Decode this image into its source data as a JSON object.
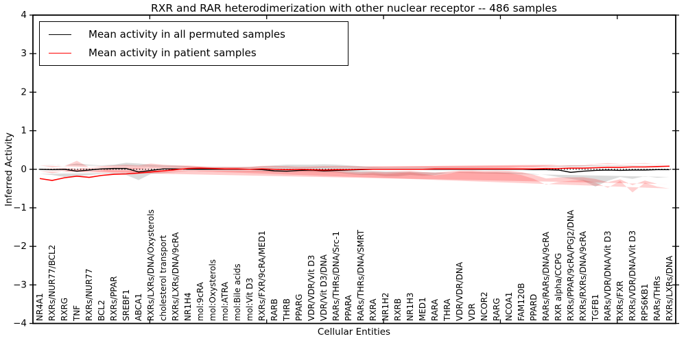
{
  "chart_data": {
    "type": "line",
    "title": "RXR and RAR heterodimerization with other nuclear receptor -- 486 samples",
    "xlabel": "Cellular Entities",
    "ylabel": "Inferred Activity",
    "ylim": [
      -4,
      4
    ],
    "yticks": [
      4,
      3,
      2,
      1,
      0,
      -1,
      -2,
      -3,
      -4
    ],
    "x_range": [
      0,
      55
    ],
    "x_minor_ticks": [
      10,
      20,
      30,
      40,
      50
    ],
    "grid": false,
    "legend_position": "upper-left",
    "zero_line": {
      "y": 0,
      "style": "dotted",
      "color": "#000000"
    },
    "categories": [
      "NR4A1",
      "RXRs/NUR77/BCL2",
      "RXRG",
      "TNF",
      "RXRs/NUR77",
      "BCL2",
      "RXRs/PPAR",
      "SREBF1",
      "ABCA1",
      "RXRs/LXRs/DNA/Oxysterols",
      "cholesterol transport",
      "RXRs/LXRs/DNA/9cRA",
      "NR1H4",
      "mol:9cRA",
      "mol:Oxysterols",
      "mol:ATRA",
      "mol:Bile acids",
      "mol:Vit D3",
      "RXRs/FXR/9cRA/MED1",
      "RARB",
      "THRB",
      "PPARG",
      "VDR/VDR/Vit D3",
      "VDR/Vit D3/DNA",
      "RARs/THRs/DNA/Src-1",
      "PPARA",
      "RARs/THRs/DNA/SMRT",
      "RXRA",
      "NR1H2",
      "RXRB",
      "NR1H3",
      "MED1",
      "RARA",
      "THRA",
      "VDR/VDR/DNA",
      "VDR",
      "NCOR2",
      "RARG",
      "NCOA1",
      "FAM120B",
      "PPARD",
      "RARs/RARs/DNA/9cRA",
      "RXR alpha/CCPG",
      "RXRs/PPAR/9cRA/PGJ2/DNA",
      "RXRs/RXRs/DNA/9cRA",
      "TGFB1",
      "RARs/VDR/DNA/Vit D3",
      "RXRs/FXR",
      "RXRs/VDR/DNA/Vit D3",
      "RPS6KB1",
      "RARs/THRs",
      "RXRs/LXRs/DNA"
    ],
    "series": [
      {
        "name": "Mean activity in all permuted samples",
        "color": "#000000",
        "values": [
          0,
          -0.01,
          0,
          -0.05,
          -0.02,
          0.01,
          0.02,
          0.02,
          -0.07,
          -0.03,
          0.01,
          0.01,
          0,
          0,
          0,
          0,
          0,
          0,
          -0.01,
          -0.04,
          -0.05,
          -0.03,
          -0.02,
          -0.04,
          -0.03,
          -0.02,
          -0.01,
          0,
          0,
          0,
          0,
          0,
          0,
          0,
          0,
          0,
          0,
          0,
          0,
          0,
          -0.01,
          -0.01,
          -0.02,
          -0.08,
          -0.05,
          -0.03,
          -0.02,
          -0.03,
          -0.02,
          -0.02,
          -0.01,
          -0.01
        ]
      },
      {
        "name": "Mean activity in patient samples",
        "color": "#ff0000",
        "values": [
          -0.24,
          -0.29,
          -0.22,
          -0.18,
          -0.21,
          -0.16,
          -0.13,
          -0.12,
          -0.1,
          -0.07,
          -0.04,
          -0.01,
          0.02,
          0.03,
          0.02,
          0.01,
          0.01,
          0,
          0.01,
          0,
          -0.01,
          0,
          -0.01,
          -0.02,
          -0.01,
          -0.01,
          0,
          0,
          0,
          0,
          0,
          0,
          0.01,
          0.01,
          0.01,
          0.01,
          0.01,
          0.01,
          0.01,
          0.01,
          0.01,
          0.02,
          0.02,
          0.03,
          0.03,
          0.04,
          0.05,
          0.05,
          0.06,
          0.06,
          0.07,
          0.08
        ]
      }
    ],
    "bands": [
      {
        "name": "permuted-samples-range",
        "color": "#aaaaaa",
        "opacity": 0.42,
        "lower": [
          -0.2,
          -0.22,
          -0.18,
          -0.25,
          -0.2,
          -0.3,
          -0.45,
          -0.3,
          -0.25,
          -0.2,
          -0.15,
          -0.12,
          -0.1,
          -0.08,
          -0.08,
          -0.08,
          -0.08,
          -0.08,
          -0.1,
          -0.15,
          -0.17,
          -0.15,
          -0.18,
          -0.18,
          -0.15,
          -0.15,
          -0.12,
          -0.08,
          -0.07,
          -0.07,
          -0.06,
          -0.06,
          -0.06,
          -0.06,
          -0.06,
          -0.06,
          -0.06,
          -0.06,
          -0.06,
          -0.07,
          -0.08,
          -0.1,
          -0.12,
          -0.28,
          -0.15,
          -0.12,
          -0.12,
          -0.15,
          -0.18,
          -0.2,
          -0.15,
          -0.12
        ],
        "upper": [
          0.12,
          0.12,
          0.1,
          0.15,
          0.12,
          0.1,
          0.12,
          0.17,
          0.15,
          0.12,
          0.1,
          0.1,
          0.08,
          0.06,
          0.06,
          0.06,
          0.06,
          0.06,
          0.08,
          0.1,
          0.12,
          0.12,
          0.12,
          0.13,
          0.12,
          0.1,
          0.08,
          0.06,
          0.05,
          0.05,
          0.05,
          0.05,
          0.05,
          0.05,
          0.05,
          0.05,
          0.05,
          0.05,
          0.05,
          0.05,
          0.06,
          0.07,
          0.08,
          0.1,
          0.1,
          0.1,
          0.1,
          0.1,
          0.1,
          0.1,
          0.1,
          0.1
        ]
      },
      {
        "name": "patient-samples-range",
        "color": "#ff0000",
        "opacity": 0.18,
        "lower": [
          -0.5,
          -0.45,
          -0.35,
          -0.6,
          -0.3,
          -0.48,
          -0.35,
          -0.28,
          -0.3,
          -0.33,
          -0.4,
          -0.25,
          -0.15,
          -0.1,
          -0.08,
          -0.08,
          -0.06,
          -0.06,
          -0.12,
          -0.16,
          -0.12,
          -0.08,
          -0.1,
          -0.12,
          -0.1,
          -0.12,
          -0.1,
          -0.06,
          -0.04,
          -0.04,
          -0.04,
          -0.04,
          -0.04,
          -0.04,
          -0.04,
          -0.04,
          -0.04,
          -0.04,
          -0.04,
          -0.05,
          -0.06,
          -0.08,
          -0.08,
          -0.1,
          -0.08,
          -0.08,
          -0.06,
          -0.06,
          -0.05,
          -0.04,
          -0.03,
          -0.02
        ],
        "upper": [
          0.1,
          0.05,
          0.08,
          0.22,
          0.05,
          0.08,
          0.1,
          0.12,
          0.1,
          0.15,
          0.12,
          0.1,
          0.1,
          0.08,
          0.06,
          0.06,
          0.05,
          0.06,
          0.09,
          0.09,
          0.08,
          0.06,
          0.07,
          0.08,
          0.08,
          0.08,
          0.07,
          0.05,
          0.05,
          0.05,
          0.05,
          0.05,
          0.05,
          0.05,
          0.05,
          0.05,
          0.05,
          0.05,
          0.05,
          0.06,
          0.07,
          0.09,
          0.12,
          0.12,
          0.12,
          0.14,
          0.16,
          0.14,
          0.15,
          0.16,
          0.14,
          0.15
        ]
      }
    ]
  }
}
